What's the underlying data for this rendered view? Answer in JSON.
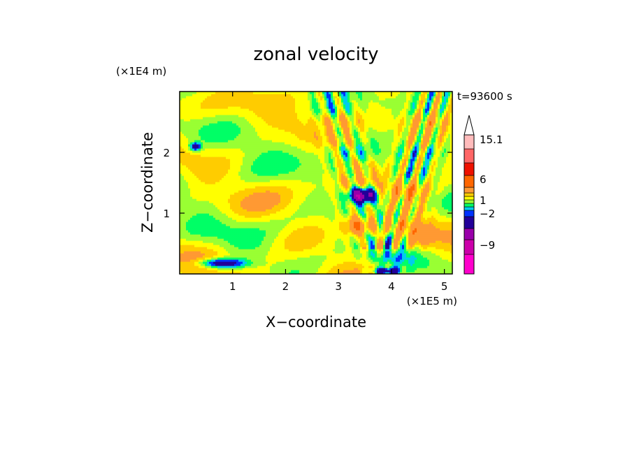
{
  "chart_data": {
    "type": "heatmap",
    "title": "zonal velocity",
    "xlabel": "X−coordinate",
    "ylabel": "Z−coordinate",
    "x_unit": "(×1E5 m)",
    "y_unit": "(×1E4 m)",
    "time_label": "t=93600 s",
    "xlim": [
      0,
      5.15
    ],
    "ylim": [
      0,
      3.0
    ],
    "x_ticks": [
      "1",
      "2",
      "3",
      "4",
      "5"
    ],
    "x_tick_values": [
      1,
      2,
      3,
      4,
      5
    ],
    "y_ticks": [
      "1",
      "2"
    ],
    "y_tick_values": [
      1,
      2
    ],
    "colorbar": {
      "levels": [
        -15,
        -12,
        -9,
        -6,
        -3,
        -2,
        -1,
        0,
        1,
        2,
        3,
        6,
        9,
        12,
        15.1
      ],
      "colors": [
        "#ff00cc",
        "#cc00aa",
        "#9900aa",
        "#220099",
        "#0033ff",
        "#00ccee",
        "#00ff66",
        "#99ff33",
        "#ffff00",
        "#ffcc00",
        "#ff9933",
        "#ff6600",
        "#ee1100",
        "#ff6666",
        "#ffbbbb"
      ],
      "labels": [
        "15.1",
        "6",
        "1",
        "−2",
        "−9"
      ],
      "label_values": [
        15.1,
        6,
        1,
        -2,
        -9
      ]
    },
    "features": [
      {
        "x": 3.45,
        "z": 1.3,
        "value": -9,
        "sx": 0.25,
        "sz": 0.14
      },
      {
        "x": 3.35,
        "z": 0.8,
        "value": 6,
        "sx": 0.25,
        "sz": 0.18
      },
      {
        "x": 4.3,
        "z": 1.35,
        "value": 5,
        "sx": 0.4,
        "sz": 0.14
      },
      {
        "x": 4.5,
        "z": 0.6,
        "value": 4,
        "sx": 0.3,
        "sz": 0.2
      },
      {
        "x": 0.8,
        "z": 0.18,
        "value": -6,
        "sx": 0.45,
        "sz": 0.08
      },
      {
        "x": 0.3,
        "z": 2.1,
        "value": -6,
        "sx": 0.1,
        "sz": 0.06
      },
      {
        "x": 3.9,
        "z": 0.05,
        "value": -6,
        "sx": 0.25,
        "sz": 0.06
      },
      {
        "x": 1.8,
        "z": 0.6,
        "value": 1.5,
        "sx": 0.9,
        "sz": 0.22
      }
    ]
  }
}
